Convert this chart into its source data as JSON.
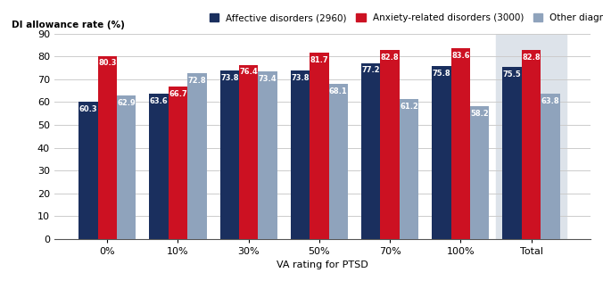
{
  "categories": [
    "0%",
    "10%",
    "30%",
    "50%",
    "70%",
    "100%",
    "Total"
  ],
  "affective": [
    60.3,
    63.6,
    73.8,
    73.8,
    77.2,
    75.8,
    75.5
  ],
  "anxiety": [
    80.3,
    66.7,
    76.4,
    81.7,
    82.8,
    83.6,
    82.8
  ],
  "other": [
    62.9,
    72.8,
    73.4,
    68.1,
    61.2,
    58.2,
    63.8
  ],
  "affective_color": "#1a2f5e",
  "anxiety_color": "#cc1122",
  "other_color": "#8fa3bc",
  "ylabel": "DI allowance rate (%)",
  "xlabel": "VA rating for PTSD",
  "legend_labels": [
    "Affective disorders (2960)",
    "Anxiety-related disorders (3000)",
    "Other diagnoses"
  ],
  "ylim": [
    0,
    90
  ],
  "yticks": [
    0,
    10,
    20,
    30,
    40,
    50,
    60,
    70,
    80,
    90
  ],
  "total_bg_color": "#dde3ea",
  "bar_width": 0.27,
  "label_fontsize": 6.0
}
